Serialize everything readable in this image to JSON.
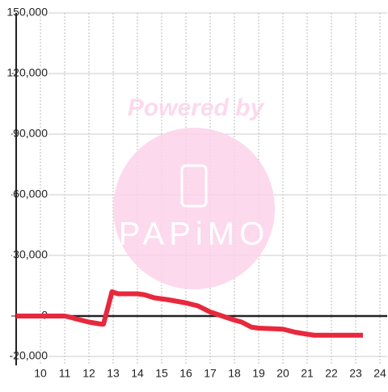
{
  "chart_data": {
    "type": "line",
    "watermark": {
      "top": "Powered by",
      "brand": "PAPiMO"
    },
    "x": [
      9,
      11,
      11.2,
      11.5,
      12,
      12.5,
      12.6,
      12.8,
      12.95,
      13.2,
      14,
      14.3,
      14.7,
      15.3,
      16,
      16.5,
      17,
      17.5,
      18,
      18.3,
      18.7,
      19,
      20,
      20.5,
      21,
      21.3,
      23.3
    ],
    "series": [
      {
        "color": "#e8283c",
        "values": [
          0,
          0,
          -500,
          -1500,
          -3000,
          -4000,
          -4000,
          5000,
          12000,
          11000,
          11000,
          10500,
          9000,
          8000,
          6500,
          5000,
          2000,
          0,
          -2000,
          -3000,
          -5500,
          -6000,
          -6500,
          -8000,
          -9000,
          -9500,
          -9500
        ]
      }
    ],
    "xlim": [
      9,
      24.3
    ],
    "xticks": [
      10,
      11,
      12,
      13,
      14,
      15,
      16,
      17,
      18,
      19,
      20,
      21,
      22,
      23,
      24
    ],
    "ylim": [
      -20000,
      150000
    ],
    "yticks": [
      {
        "value": -20000,
        "label": "-20,000"
      },
      0,
      {
        "value": 30000,
        "label": "30,000"
      },
      {
        "value": 60000,
        "label": "60,000"
      },
      {
        "value": 90000,
        "label": "90,000"
      },
      {
        "value": 120000,
        "label": "120,000"
      },
      {
        "value": 150000,
        "label": "150,000"
      }
    ],
    "grid": true
  }
}
